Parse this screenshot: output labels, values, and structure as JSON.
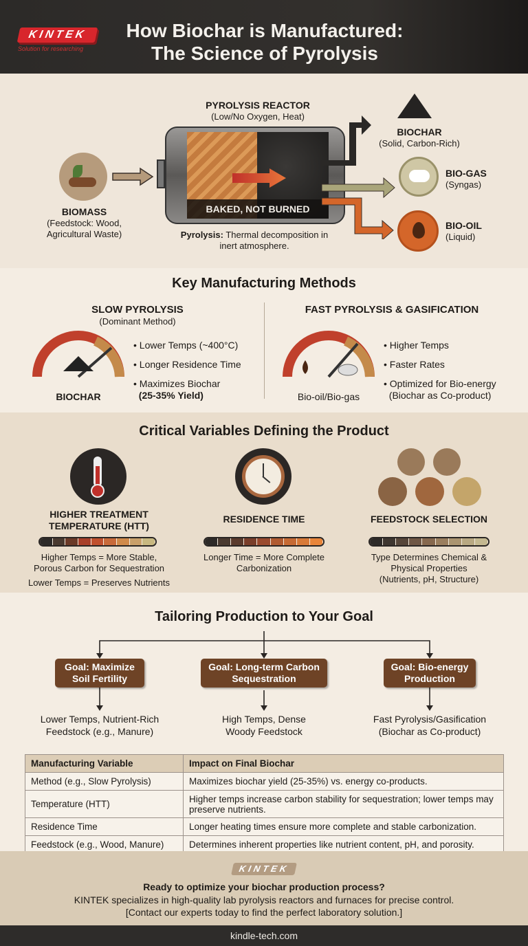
{
  "header": {
    "logo": "KINTEK",
    "tagline": "Solution for researching",
    "title_line1": "How Biochar is Manufactured:",
    "title_line2": "The Science of Pyrolysis"
  },
  "process": {
    "reactor_title": "PYROLYSIS REACTOR",
    "reactor_sub": "(Low/No Oxygen, Heat)",
    "reactor_label": "BAKED, NOT BURNED",
    "caption_bold": "Pyrolysis:",
    "caption_rest": " Thermal decomposition in inert atmosphere.",
    "input": {
      "title": "BIOMASS",
      "sub1": "(Feedstock: Wood,",
      "sub2": "Agricultural Waste)",
      "icon": "biomass-icon"
    },
    "outputs": [
      {
        "title": "BIOCHAR",
        "sub": "(Solid, Carbon-Rich)",
        "icon": "biochar-pile-icon",
        "color": "#2a2826"
      },
      {
        "title": "BIO-GAS",
        "sub": "(Syngas)",
        "icon": "cloud-icon",
        "color": "#8f8c63"
      },
      {
        "title": "BIO-OIL",
        "sub": "(Liquid)",
        "icon": "droplet-icon",
        "color": "#d4662a"
      }
    ]
  },
  "methods": {
    "title": "Key Manufacturing Methods",
    "slow": {
      "title": "SLOW PYROLYSIS",
      "sub": "(Dominant Method)",
      "gauge_label": "BIOCHAR",
      "bullets": [
        "Lower Temps (~400°C)",
        "Longer Residence Time",
        "Maximizes Biochar"
      ],
      "bullet_bold": "(25-35% Yield)"
    },
    "fast": {
      "title": "FAST PYROLYSIS & GASIFICATION",
      "gauge_label": "Bio-oil/Bio-gas",
      "bullets": [
        "Higher Temps",
        "Faster Rates",
        "Optimized for Bio-energy"
      ],
      "bullet_extra": "(Biochar as Co-product)"
    }
  },
  "variables": {
    "title": "Critical Variables Defining the Product",
    "items": [
      {
        "title1": "HIGHER TREATMENT",
        "title2": "TEMPERATURE (HTT)",
        "desc1": "Higher Temps = More Stable,",
        "desc2": "Porous Carbon for Sequestration",
        "desc3": "Lower Temps = Preserves Nutrients",
        "icon": "thermometer-icon"
      },
      {
        "title1": "RESIDENCE TIME",
        "desc1": "Longer Time = More Complete",
        "desc2": "Carbonization",
        "icon": "clock-icon"
      },
      {
        "title1": "FEEDSTOCK SELECTION",
        "desc1": "Type Determines Chemical &",
        "desc2": "Physical Properties",
        "desc3": "(Nutrients, pH, Structure)",
        "icon": "feedstock-icons"
      }
    ]
  },
  "goals": {
    "title": "Tailoring Production to Your Goal",
    "items": [
      {
        "goal1": "Goal: Maximize",
        "goal2": "Soil Fertility",
        "r1": "Lower Temps, Nutrient-Rich",
        "r2": "Feedstock (e.g., Manure)"
      },
      {
        "goal1": "Goal: Long-term Carbon",
        "goal2": "Sequestration",
        "r1": "High Temps, Dense",
        "r2": "Woody Feedstock"
      },
      {
        "goal1": "Goal: Bio-energy",
        "goal2": "Production",
        "r1": "Fast Pyrolysis/Gasification",
        "r2": "(Biochar as Co-product)"
      }
    ]
  },
  "table": {
    "headers": [
      "Manufacturing Variable",
      "Impact on Final Biochar"
    ],
    "rows": [
      [
        "Method (e.g., Slow Pyrolysis)",
        "Maximizes biochar yield (25-35%) vs. energy co-products."
      ],
      [
        "Temperature (HTT)",
        "Higher temps increase carbon stability for sequestration; lower temps may preserve nutrients."
      ],
      [
        "Residence Time",
        "Longer heating times ensure more complete and stable carbonization."
      ],
      [
        "Feedstock (e.g., Wood, Manure)",
        "Determines inherent properties like nutrient content, pH, and porosity."
      ]
    ]
  },
  "cta": {
    "logo": "KINTEK",
    "headline": "Ready to optimize your biochar production process?",
    "line2": "KINTEK specializes in high-quality lab pyrolysis reactors and furnaces for precise control.",
    "line3": "[Contact our experts today to find the perfect laboratory solution.]"
  },
  "footer": {
    "url": "kindle-tech.com"
  }
}
